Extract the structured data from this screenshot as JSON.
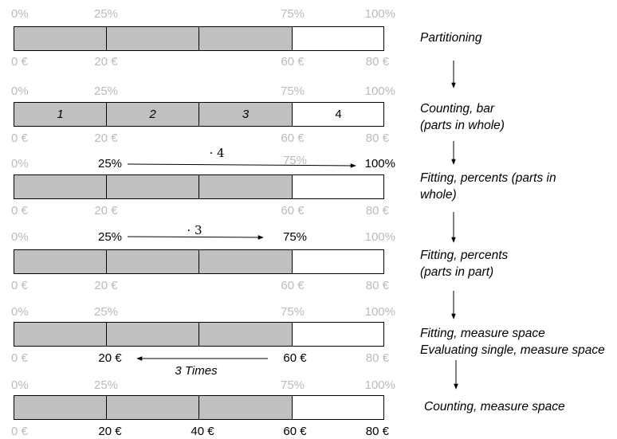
{
  "percent_labels": [
    "0%",
    "25%",
    "75%",
    "100%"
  ],
  "euro_labels": [
    "0 €",
    "20 €",
    "40 €",
    "60 €",
    "80 €"
  ],
  "segment_numbers": [
    "1",
    "2",
    "3",
    "4"
  ],
  "multipliers": [
    "· 4",
    "· 3"
  ],
  "times_label": "3 Times",
  "steps": [
    {
      "lines": [
        "Partitioning"
      ]
    },
    {
      "lines": [
        "Counting, bar",
        "(parts in whole)"
      ]
    },
    {
      "lines": [
        "Fitting, percents (parts in",
        "whole)"
      ]
    },
    {
      "lines": [
        "Fitting, percents",
        "(parts in part)"
      ]
    },
    {
      "lines": [
        "Fitting, measure space",
        "Evaluating single, measure space"
      ]
    },
    {
      "lines": [
        "Counting, measure space"
      ]
    }
  ],
  "colors": {
    "filled_segment": "#c0c0c0",
    "faded_label": "#bbbbbb",
    "highlight_label": "#000000"
  }
}
